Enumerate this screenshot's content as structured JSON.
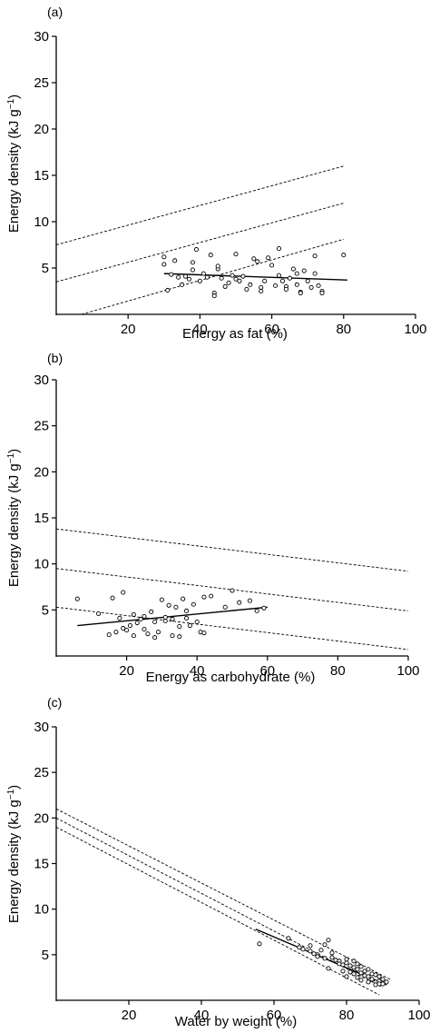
{
  "chart_data": [
    {
      "type": "scatter",
      "panel_label": "(a)",
      "xlabel": "Energy as fat (%)",
      "ylabel_main": "Energy density (kJ g",
      "ylabel_sup": "−1",
      "ylabel_close": ")",
      "xlim": [
        0,
        100
      ],
      "ylim": [
        0,
        30
      ],
      "xticks": [
        20,
        40,
        60,
        80,
        100
      ],
      "yticks": [
        5,
        10,
        15,
        20,
        25,
        30
      ],
      "points": [
        [
          30,
          6.2
        ],
        [
          30,
          5.4
        ],
        [
          31,
          2.6
        ],
        [
          32,
          4.3
        ],
        [
          33,
          5.8
        ],
        [
          34,
          4.0
        ],
        [
          35,
          3.2
        ],
        [
          36,
          4.1
        ],
        [
          37,
          3.8
        ],
        [
          38,
          5.6
        ],
        [
          38,
          4.8
        ],
        [
          39,
          7.0
        ],
        [
          40,
          3.6
        ],
        [
          41,
          4.4
        ],
        [
          42,
          4.0
        ],
        [
          43,
          6.4
        ],
        [
          44,
          2.3
        ],
        [
          44,
          2.0
        ],
        [
          45,
          4.9
        ],
        [
          45,
          5.2
        ],
        [
          46,
          3.9
        ],
        [
          47,
          3.0
        ],
        [
          48,
          3.4
        ],
        [
          49,
          4.2
        ],
        [
          50,
          3.8
        ],
        [
          50,
          6.5
        ],
        [
          51,
          3.6
        ],
        [
          52,
          4.1
        ],
        [
          53,
          2.7
        ],
        [
          54,
          3.2
        ],
        [
          55,
          6.0
        ],
        [
          56,
          5.7
        ],
        [
          57,
          2.9
        ],
        [
          57,
          2.5
        ],
        [
          58,
          3.6
        ],
        [
          59,
          6.1
        ],
        [
          60,
          5.3
        ],
        [
          61,
          3.1
        ],
        [
          62,
          4.2
        ],
        [
          62,
          7.1
        ],
        [
          63,
          3.6
        ],
        [
          64,
          3.0
        ],
        [
          64,
          2.7
        ],
        [
          65,
          3.9
        ],
        [
          66,
          4.9
        ],
        [
          67,
          4.4
        ],
        [
          67,
          3.2
        ],
        [
          68,
          2.4
        ],
        [
          68,
          2.3
        ],
        [
          69,
          4.7
        ],
        [
          70,
          3.6
        ],
        [
          71,
          2.9
        ],
        [
          72,
          6.3
        ],
        [
          72,
          4.4
        ],
        [
          73,
          3.1
        ],
        [
          74,
          2.5
        ],
        [
          74,
          2.3
        ],
        [
          80,
          6.4
        ]
      ],
      "fit_line": [
        [
          30,
          4.4
        ],
        [
          81,
          3.7
        ]
      ],
      "reference_lines": [
        [
          [
            0,
            7.5
          ],
          [
            80,
            16.0
          ]
        ],
        [
          [
            0,
            3.5
          ],
          [
            80,
            12.0
          ]
        ],
        [
          [
            7,
            0.0
          ],
          [
            80,
            8.1
          ]
        ]
      ]
    },
    {
      "type": "scatter",
      "panel_label": "(b)",
      "xlabel": "Energy as carbohydrate (%)",
      "ylabel_main": "Energy density (kJ g",
      "ylabel_sup": "−1",
      "ylabel_close": ")",
      "xlim": [
        0,
        100
      ],
      "ylim": [
        0,
        30
      ],
      "xticks": [
        20,
        40,
        60,
        80,
        100
      ],
      "yticks": [
        5,
        10,
        15,
        20,
        25,
        30
      ],
      "points": [
        [
          6,
          6.2
        ],
        [
          12,
          4.6
        ],
        [
          15,
          2.3
        ],
        [
          16,
          6.3
        ],
        [
          17,
          2.6
        ],
        [
          18,
          4.1
        ],
        [
          19,
          6.9
        ],
        [
          19,
          3.0
        ],
        [
          20,
          2.8
        ],
        [
          21,
          3.3
        ],
        [
          22,
          4.5
        ],
        [
          22,
          2.2
        ],
        [
          23,
          3.6
        ],
        [
          24,
          4.0
        ],
        [
          25,
          4.3
        ],
        [
          25,
          2.9
        ],
        [
          26,
          2.4
        ],
        [
          27,
          4.8
        ],
        [
          28,
          3.7
        ],
        [
          28,
          2.0
        ],
        [
          29,
          2.6
        ],
        [
          30,
          6.1
        ],
        [
          31,
          3.8
        ],
        [
          31,
          4.2
        ],
        [
          32,
          5.5
        ],
        [
          33,
          4.0
        ],
        [
          33,
          2.2
        ],
        [
          34,
          5.3
        ],
        [
          35,
          3.2
        ],
        [
          35,
          2.1
        ],
        [
          36,
          6.2
        ],
        [
          37,
          4.9
        ],
        [
          37,
          4.1
        ],
        [
          38,
          3.3
        ],
        [
          39,
          5.6
        ],
        [
          40,
          3.7
        ],
        [
          41,
          2.6
        ],
        [
          42,
          6.4
        ],
        [
          42,
          2.5
        ],
        [
          44,
          6.5
        ],
        [
          48,
          5.3
        ],
        [
          50,
          7.1
        ],
        [
          52,
          5.8
        ],
        [
          55,
          6.0
        ],
        [
          57,
          4.9
        ],
        [
          59,
          5.2
        ]
      ],
      "fit_line": [
        [
          6,
          3.3
        ],
        [
          60,
          5.3
        ]
      ],
      "reference_lines": [
        [
          [
            0,
            13.8
          ],
          [
            100,
            9.2
          ]
        ],
        [
          [
            0,
            9.5
          ],
          [
            100,
            4.9
          ]
        ],
        [
          [
            0,
            5.3
          ],
          [
            100,
            0.7
          ]
        ]
      ]
    },
    {
      "type": "scatter",
      "panel_label": "(c)",
      "xlabel": "Water by weight (%)",
      "ylabel_main": "Energy density (kJ g",
      "ylabel_sup": "−1",
      "ylabel_close": ")",
      "xlim": [
        0,
        100
      ],
      "ylim": [
        0,
        30
      ],
      "xticks": [
        20,
        40,
        60,
        80,
        100
      ],
      "yticks": [
        5,
        10,
        15,
        20,
        25,
        30
      ],
      "points": [
        [
          56,
          6.2
        ],
        [
          64,
          6.8
        ],
        [
          67,
          5.8
        ],
        [
          68,
          5.6
        ],
        [
          70,
          6.0
        ],
        [
          70,
          5.4
        ],
        [
          71,
          5.1
        ],
        [
          72,
          5.0
        ],
        [
          72,
          4.8
        ],
        [
          73,
          5.5
        ],
        [
          74,
          6.1
        ],
        [
          74,
          4.6
        ],
        [
          75,
          6.6
        ],
        [
          75,
          3.5
        ],
        [
          76,
          5.2
        ],
        [
          76,
          4.7
        ],
        [
          77,
          4.4
        ],
        [
          78,
          4.3
        ],
        [
          78,
          4.0
        ],
        [
          79,
          3.9
        ],
        [
          79,
          3.2
        ],
        [
          80,
          4.5
        ],
        [
          80,
          4.1
        ],
        [
          80,
          2.6
        ],
        [
          81,
          3.8
        ],
        [
          81,
          3.1
        ],
        [
          82,
          4.3
        ],
        [
          82,
          3.6
        ],
        [
          82,
          2.9
        ],
        [
          83,
          4.0
        ],
        [
          83,
          3.4
        ],
        [
          83,
          2.5
        ],
        [
          84,
          3.7
        ],
        [
          84,
          3.0
        ],
        [
          84,
          2.2
        ],
        [
          85,
          3.2
        ],
        [
          85,
          2.7
        ],
        [
          86,
          3.4
        ],
        [
          86,
          2.6
        ],
        [
          86,
          2.0
        ],
        [
          87,
          2.9
        ],
        [
          87,
          2.3
        ],
        [
          88,
          2.8
        ],
        [
          88,
          2.0
        ],
        [
          88,
          1.7
        ],
        [
          89,
          2.6
        ],
        [
          89,
          2.1
        ],
        [
          89,
          1.8
        ],
        [
          90,
          2.3
        ],
        [
          90,
          1.8
        ],
        [
          91,
          2.0
        ]
      ],
      "fit_line": [
        [
          55,
          7.8
        ],
        [
          91,
          1.7
        ]
      ],
      "reference_lines": [
        [
          [
            0,
            21.0
          ],
          [
            92,
            2.3
          ]
        ],
        [
          [
            0,
            20.0
          ],
          [
            90,
            1.4
          ]
        ],
        [
          [
            0,
            19.0
          ],
          [
            89,
            0.6
          ]
        ]
      ]
    }
  ]
}
